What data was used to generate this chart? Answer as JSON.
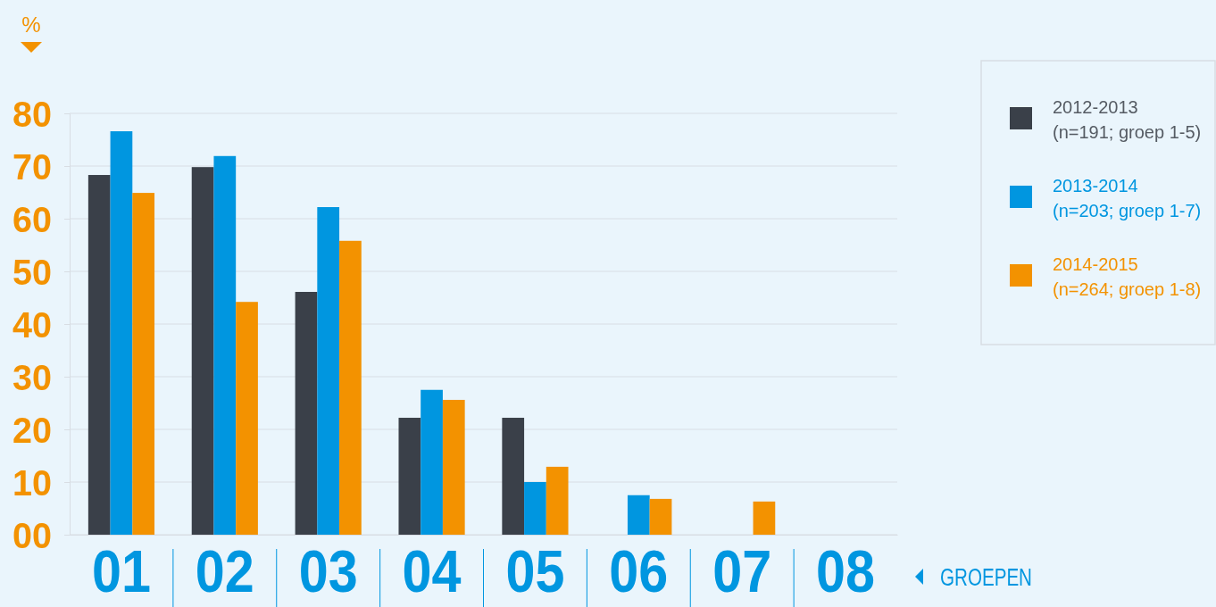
{
  "chart_data": {
    "type": "bar",
    "ylabel": "%",
    "xlabel": "GROEPEN",
    "categories": [
      "01",
      "02",
      "03",
      "04",
      "05",
      "06",
      "07",
      "08"
    ],
    "series": [
      {
        "name": "2012-2013\n(n=191; groep 1-5)",
        "color": "#3a4049",
        "values": [
          68.3,
          69.8,
          46.1,
          22.2,
          22.2,
          null,
          null,
          null
        ]
      },
      {
        "name": "2013-2014\n(n=203; groep 1-7)",
        "color": "#0096e0",
        "values": [
          76.6,
          71.9,
          62.2,
          27.5,
          10,
          7.5,
          null,
          null
        ]
      },
      {
        "name": "2014-2015\n(n=264; groep 1-8)",
        "color": "#f39200",
        "values": [
          64.9,
          44.2,
          55.8,
          25.6,
          12.9,
          6.8,
          6.3,
          null
        ]
      }
    ],
    "ylim": [
      0,
      80
    ],
    "yticks": [
      {
        "value": 0,
        "label": "00"
      },
      10,
      20,
      30,
      40,
      50,
      60,
      70,
      80
    ],
    "grid": "y",
    "legend": "right"
  }
}
